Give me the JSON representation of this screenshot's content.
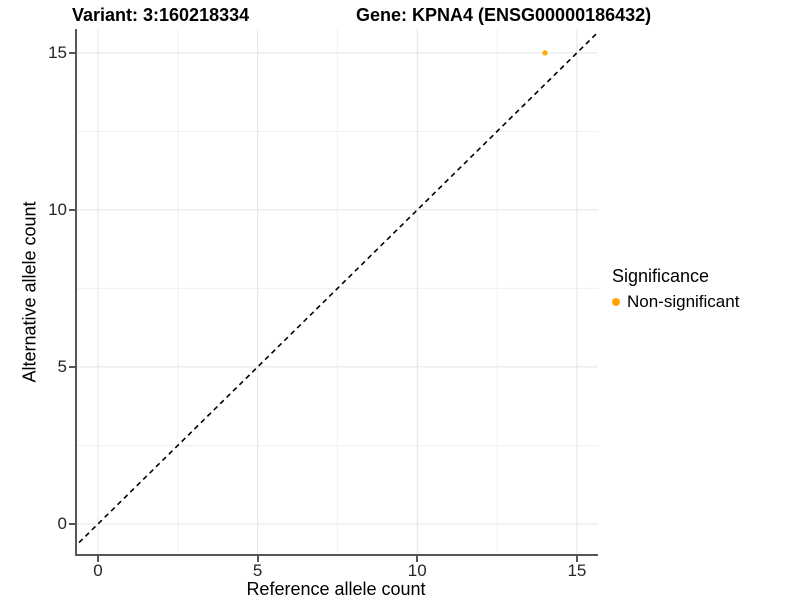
{
  "chart_data": {
    "type": "scatter",
    "titles": {
      "left": "Variant: 3:160218334",
      "right": "Gene: KPNA4 (ENSG00000186432)"
    },
    "xlabel": "Reference allele count",
    "ylabel": "Alternative allele count",
    "x_ticks": [
      0,
      5,
      10,
      15
    ],
    "y_ticks": [
      0,
      5,
      10,
      15
    ],
    "x_minor_ticks": [
      2.5,
      7.5,
      12.5
    ],
    "y_minor_ticks": [
      2.5,
      7.5,
      12.5
    ],
    "xlim": [
      -0.72,
      15.66
    ],
    "ylim": [
      -1.02,
      15.76
    ],
    "grid": "major+minor",
    "points": [
      {
        "x": 14,
        "y": 15,
        "series": "Non-significant",
        "color": "#FFA500",
        "radius": 2.6
      }
    ],
    "identity_line": {
      "equation": "y = x",
      "style": "dashed",
      "color": "#000000"
    },
    "legend": {
      "position": "right",
      "title": "Significance",
      "items": [
        {
          "label": "Non-significant",
          "color": "#FFA500"
        }
      ]
    }
  },
  "colors": {
    "background": "#ffffff",
    "axis_line": "#565656",
    "tick_mark": "#565656",
    "tick_text": "#262626",
    "grid_major": "#e4e4e4",
    "grid_minor": "#f1f1f1",
    "point": "#FFA500"
  }
}
